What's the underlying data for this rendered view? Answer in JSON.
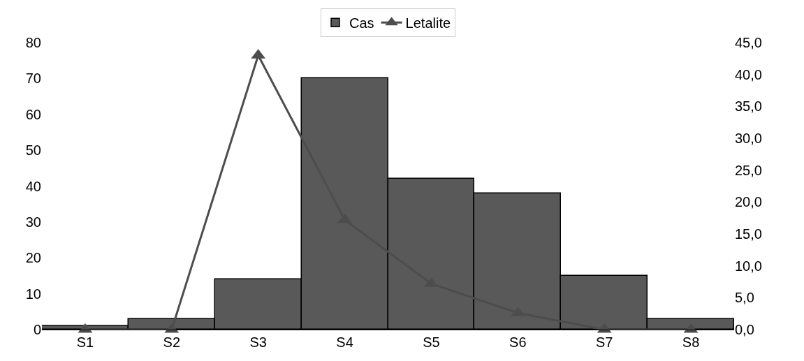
{
  "chart_data": {
    "type": "bar",
    "categories": [
      "S1",
      "S2",
      "S3",
      "S4",
      "S5",
      "S6",
      "S7",
      "S8"
    ],
    "series": [
      {
        "name": "Cas",
        "color": "#595959",
        "values": [
          1,
          3,
          14,
          70,
          42,
          38,
          15,
          3
        ]
      },
      {
        "name": "Letalite",
        "type": "line",
        "axis": "y2",
        "color": "#4d4d4d",
        "marker": "triangle",
        "values": [
          0,
          0,
          43,
          17.2,
          7.2,
          2.6,
          0,
          0
        ]
      }
    ],
    "ylim": [
      0,
      80
    ],
    "yticks": [
      0,
      10,
      20,
      30,
      40,
      50,
      60,
      70,
      80
    ],
    "y2lim": [
      0,
      45
    ],
    "y2ticks": [
      {
        "value": 0,
        "label": "0,0"
      },
      {
        "value": 5,
        "label": "5,0"
      },
      {
        "value": 10,
        "label": "10,0"
      },
      {
        "value": 15,
        "label": "15,0"
      },
      {
        "value": 20,
        "label": "20,0"
      },
      {
        "value": 25,
        "label": "25,0"
      },
      {
        "value": 30,
        "label": "30,0"
      },
      {
        "value": 35,
        "label": "35,0"
      },
      {
        "value": 40,
        "label": "40,0"
      },
      {
        "value": 45,
        "label": "45,0"
      }
    ],
    "legend": "top"
  }
}
